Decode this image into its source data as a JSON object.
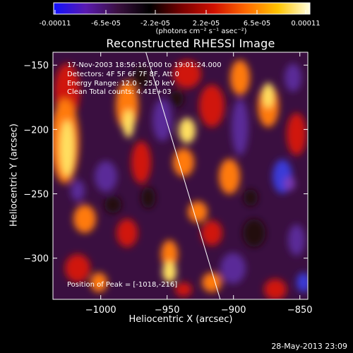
{
  "colorbar": {
    "ticks": [
      "-0.00011",
      "-6.5e-05",
      "-2.2e-05",
      "2.2e-05",
      "6.5e-05",
      "0.00011"
    ],
    "units": "(photons cm⁻² s⁻¹ asec⁻²)",
    "colors": [
      "#1010ff",
      "#5a1ab0",
      "#3a1040",
      "#000000",
      "#7a0000",
      "#d01000",
      "#ff6a00",
      "#ffc400",
      "#ffffe0"
    ]
  },
  "annotations": {
    "time": "17-Nov-2003 18:56:16.000 to 19:01:24.000",
    "detectors": "Detectors: 4F 5F 6F 7F 8F, Att 0",
    "energy": "Energy Range: 12.0 - 25.0 keV",
    "clean": "Clean     Total counts: 4.41E+03",
    "peak": "Position of Peak = [-1018,-216]"
  },
  "timestamp": "28-May-2013 23:09",
  "chart_data": {
    "type": "heatmap",
    "title": "Reconstructed RHESSI Image",
    "xlabel": "Heliocentric X (arcsec)",
    "ylabel": "Heliocentric Y (arcsec)",
    "xlim": [
      -1036,
      -844
    ],
    "ylim": [
      -332,
      -140
    ],
    "xticks": [
      -1000,
      -950,
      -900,
      -850
    ],
    "yticks": [
      -150,
      -200,
      -250,
      -300
    ],
    "xtick_labels": [
      "−1000",
      "−950",
      "−900",
      "−850"
    ],
    "ytick_labels": [
      "−150",
      "−200",
      "−250",
      "−300"
    ],
    "colorbar_range": [
      -0.00011,
      0.00011
    ],
    "peak_position": [
      -1018,
      -216
    ],
    "limb_line": [
      [
        -966,
        -140
      ],
      [
        -910,
        -332
      ]
    ],
    "grid": false
  }
}
